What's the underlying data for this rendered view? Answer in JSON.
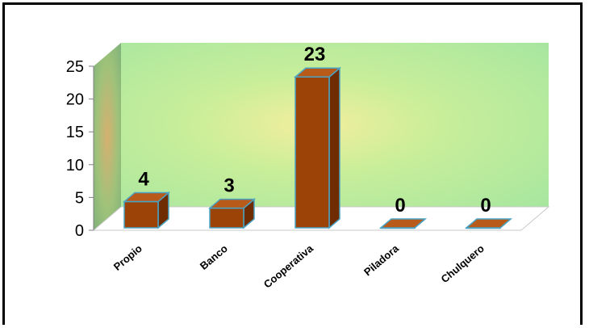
{
  "chart_data": {
    "type": "bar",
    "categories": [
      "Propio",
      "Banco",
      "Cooperativa",
      "Piladora",
      "Chulquero"
    ],
    "values": [
      4,
      3,
      23,
      0,
      0
    ],
    "data_labels": [
      "4",
      "3",
      "23",
      "0",
      "0"
    ],
    "title": "",
    "xlabel": "",
    "ylabel": "",
    "ylim": [
      0,
      25
    ],
    "yticks": [
      "0",
      "5",
      "10",
      "15",
      "20",
      "25"
    ],
    "style": "3d-column",
    "grid": false,
    "legend": "none",
    "colors": {
      "bar_front": "#9c4408",
      "bar_top": "#b85a1a",
      "bar_side": "#6e2c00",
      "bar_edge": "#4aa3c4",
      "wall_glow": "#f2ee9c",
      "wall_mid": "#c8ee9a",
      "wall_outer": "#a6e6a0",
      "floor": "#ffffff"
    }
  }
}
